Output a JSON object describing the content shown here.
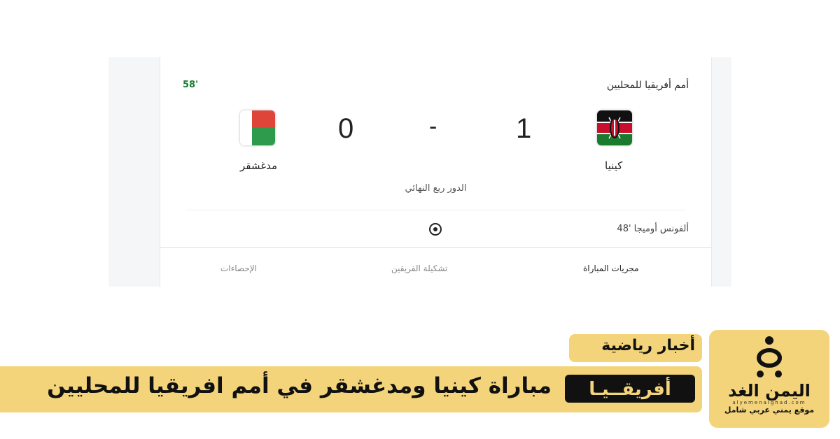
{
  "match": {
    "competition": "أمم أفريقيا للمحليين",
    "minute": "58'",
    "home": {
      "name": "كينيا",
      "score": "1",
      "flag": "kenya-flag"
    },
    "away": {
      "name": "مدغشقر",
      "score": "0",
      "flag": "madagascar-flag"
    },
    "separator": "-",
    "round": "الدور ربع النهائي",
    "events": [
      {
        "text": "ألفونس أوميجا '48",
        "icon": "football-icon"
      }
    ],
    "tabs": [
      "مجريات المباراة",
      "تشكيلة الفريقين",
      "الإحصاءات"
    ]
  },
  "banner": {
    "category": "أخبار رياضية",
    "badge": "أفريقــيـا",
    "headline": "مباراة كينيا ومدغشقر في أمم افريقيا للمحليين"
  },
  "logo": {
    "name": "اليمن الغد",
    "url": "alyemenalghad.com",
    "tagline": "موقع يمني عربي شامل"
  },
  "colors": {
    "accent": "#f3d47a",
    "minute": "#1a7f2e"
  }
}
